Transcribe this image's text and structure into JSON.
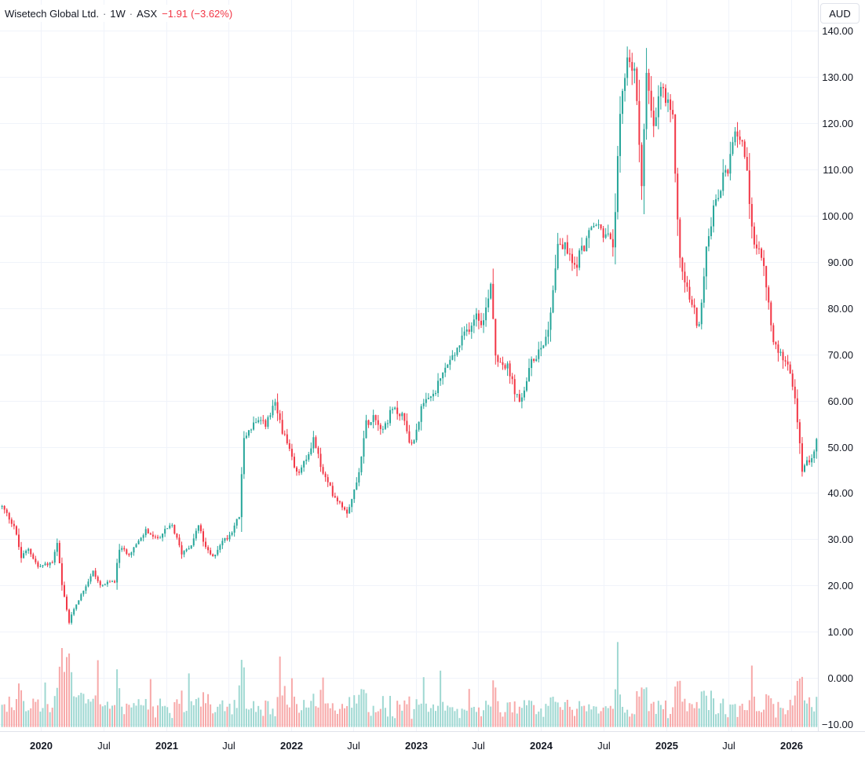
{
  "header": {
    "title": "Wisetech Global Ltd.",
    "interval": "1W",
    "exchange": "ASX",
    "change": "−1.91",
    "change_pct": "(−3.62%)"
  },
  "currency_button": "AUD",
  "colors": {
    "up": "#26a69a",
    "down": "#f23645",
    "vol_up": "#9fd8d2",
    "vol_down": "#f7a9a9",
    "grid": "#f0f3fa"
  },
  "chart_data": {
    "type": "candlestick",
    "interval": "weekly",
    "price_axis": {
      "ticks": [
        -10,
        0,
        10,
        20,
        30,
        40,
        50,
        60,
        70,
        80,
        90,
        100,
        110,
        120,
        130,
        140
      ],
      "tick_labels": [
        "−10.00",
        "0.000",
        "10.00",
        "20.00",
        "30.00",
        "40.00",
        "50.00",
        "60.00",
        "70.00",
        "80.00",
        "90.00",
        "100.00",
        "110.00",
        "120.00",
        "130.00",
        "140.00"
      ],
      "range": [
        -11.5,
        141.2
      ]
    },
    "time_axis": {
      "labels": [
        {
          "text": "2020",
          "date": "2020-01-01",
          "year": true
        },
        {
          "text": "Jul",
          "date": "2020-07-01",
          "year": false
        },
        {
          "text": "2021",
          "date": "2021-01-01",
          "year": true
        },
        {
          "text": "Jul",
          "date": "2021-07-01",
          "year": false
        },
        {
          "text": "2022",
          "date": "2022-01-01",
          "year": true
        },
        {
          "text": "Jul",
          "date": "2022-07-01",
          "year": false
        },
        {
          "text": "2023",
          "date": "2023-01-01",
          "year": true
        },
        {
          "text": "Jul",
          "date": "2023-07-01",
          "year": false
        },
        {
          "text": "2024",
          "date": "2024-01-01",
          "year": true
        },
        {
          "text": "Jul",
          "date": "2024-07-01",
          "year": false
        },
        {
          "text": "2025",
          "date": "2025-01-01",
          "year": true
        },
        {
          "text": "Jul",
          "date": "2025-07-01",
          "year": false
        },
        {
          "text": "2026",
          "date": "2026-01-01",
          "year": true
        }
      ],
      "range": [
        "2019-09-03",
        "2026-03-20"
      ]
    },
    "price_path": [
      [
        "2019-09-09",
        37
      ],
      [
        "2019-10-14",
        33
      ],
      [
        "2019-11-04",
        26
      ],
      [
        "2019-11-25",
        28
      ],
      [
        "2019-12-23",
        24
      ],
      [
        "2020-02-03",
        25
      ],
      [
        "2020-02-17",
        29
      ],
      [
        "2020-03-02",
        20
      ],
      [
        "2020-03-23",
        12
      ],
      [
        "2020-04-06",
        15
      ],
      [
        "2020-05-04",
        19
      ],
      [
        "2020-06-01",
        23
      ],
      [
        "2020-06-22",
        20
      ],
      [
        "2020-08-03",
        21
      ],
      [
        "2020-08-17",
        28
      ],
      [
        "2020-09-14",
        27
      ],
      [
        "2020-10-19",
        30
      ],
      [
        "2020-11-02",
        32
      ],
      [
        "2020-11-30",
        30
      ],
      [
        "2021-01-18",
        33
      ],
      [
        "2021-02-15",
        27
      ],
      [
        "2021-03-15",
        29
      ],
      [
        "2021-04-05",
        33
      ],
      [
        "2021-04-26",
        28
      ],
      [
        "2021-05-17",
        26
      ],
      [
        "2021-06-07",
        29
      ],
      [
        "2021-07-05",
        31
      ],
      [
        "2021-08-02",
        35
      ],
      [
        "2021-08-16",
        52
      ],
      [
        "2021-09-13",
        55
      ],
      [
        "2021-10-18",
        55
      ],
      [
        "2021-11-15",
        59
      ],
      [
        "2021-12-13",
        52
      ],
      [
        "2022-01-17",
        44
      ],
      [
        "2022-02-14",
        47
      ],
      [
        "2022-03-07",
        52
      ],
      [
        "2022-04-04",
        44
      ],
      [
        "2022-05-02",
        40
      ],
      [
        "2022-06-13",
        36
      ],
      [
        "2022-07-11",
        42
      ],
      [
        "2022-08-08",
        55
      ],
      [
        "2022-08-29",
        57
      ],
      [
        "2022-09-26",
        54
      ],
      [
        "2022-10-24",
        58
      ],
      [
        "2022-11-21",
        57
      ],
      [
        "2022-12-19",
        50
      ],
      [
        "2023-01-16",
        58
      ],
      [
        "2023-02-27",
        62
      ],
      [
        "2023-03-27",
        67
      ],
      [
        "2023-04-24",
        70
      ],
      [
        "2023-05-29",
        75
      ],
      [
        "2023-06-26",
        79
      ],
      [
        "2023-07-17",
        77
      ],
      [
        "2023-08-07",
        86
      ],
      [
        "2023-08-21",
        70
      ],
      [
        "2023-09-25",
        67
      ],
      [
        "2023-10-30",
        59
      ],
      [
        "2023-12-04",
        68
      ],
      [
        "2024-01-01",
        72
      ],
      [
        "2024-01-22",
        75
      ],
      [
        "2024-02-19",
        94
      ],
      [
        "2024-03-11",
        93
      ],
      [
        "2024-04-08",
        89
      ],
      [
        "2024-05-13",
        95
      ],
      [
        "2024-06-10",
        98
      ],
      [
        "2024-07-08",
        96
      ],
      [
        "2024-07-29",
        93
      ],
      [
        "2024-08-19",
        120
      ],
      [
        "2024-09-09",
        135
      ],
      [
        "2024-09-30",
        131
      ],
      [
        "2024-10-21",
        108
      ],
      [
        "2024-11-04",
        130
      ],
      [
        "2024-11-25",
        118
      ],
      [
        "2024-12-16",
        128
      ],
      [
        "2025-01-06",
        123
      ],
      [
        "2025-01-20",
        120
      ],
      [
        "2025-02-10",
        90
      ],
      [
        "2025-03-10",
        82
      ],
      [
        "2025-04-07",
        76
      ],
      [
        "2025-05-05",
        97
      ],
      [
        "2025-06-09",
        106
      ],
      [
        "2025-07-07",
        112
      ],
      [
        "2025-07-28",
        119
      ],
      [
        "2025-08-18",
        114
      ],
      [
        "2025-09-08",
        96
      ],
      [
        "2025-09-29",
        93
      ],
      [
        "2025-10-20",
        85
      ],
      [
        "2025-11-10",
        72
      ],
      [
        "2025-12-01",
        70
      ],
      [
        "2025-12-22",
        69
      ],
      [
        "2026-01-12",
        60
      ],
      [
        "2026-02-02",
        45
      ],
      [
        "2026-02-23",
        47
      ],
      [
        "2026-03-16",
        51
      ]
    ]
  }
}
